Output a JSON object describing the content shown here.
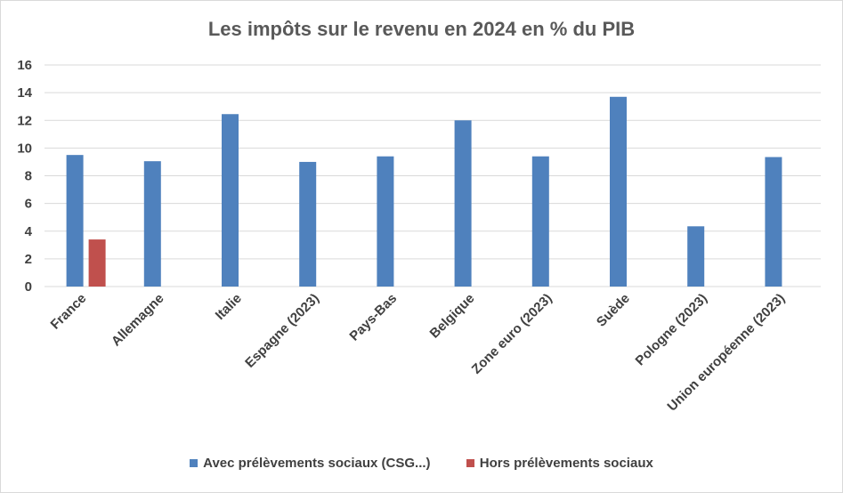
{
  "chart_data": {
    "type": "bar",
    "title": "Les impôts sur le revenu en 2024 en % du PIB",
    "xlabel": "",
    "ylabel": "",
    "ylim": [
      0,
      16
    ],
    "yticks": [
      0,
      2,
      4,
      6,
      8,
      10,
      12,
      14,
      16
    ],
    "grid": true,
    "legend_position": "bottom",
    "categories": [
      "France",
      "Allemagne",
      "Italie",
      "Espagne (2023)",
      "Pays-Bas",
      "Belgique",
      "Zone euro (2023)",
      "Suède",
      "Pologne (2023)",
      "Union européenne (2023)"
    ],
    "series": [
      {
        "name": "Avec prélèvements sociaux (CSG...)",
        "color": "#4f81bd",
        "values": [
          9.5,
          9.05,
          12.45,
          9.0,
          9.4,
          12.0,
          9.4,
          13.7,
          4.35,
          9.35
        ]
      },
      {
        "name": "Hors prélèvements sociaux",
        "color": "#c0504d",
        "values": [
          3.4,
          null,
          null,
          null,
          null,
          null,
          null,
          null,
          null,
          null
        ]
      }
    ]
  }
}
